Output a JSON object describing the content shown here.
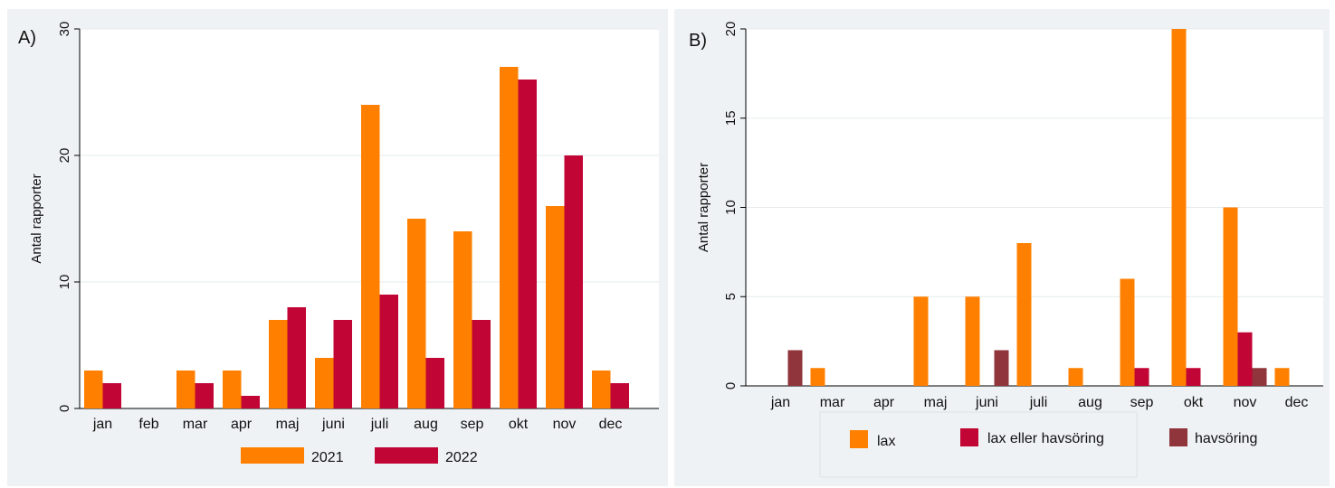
{
  "colors": {
    "orange": "#ff8000",
    "red": "#c10534",
    "maroon": "#90353b",
    "gridline": "#e6ebee",
    "plot_bg": "#ffffff",
    "panel_bg": "#eef2f4",
    "axis": "#000000"
  },
  "chart_data": [
    {
      "type": "bar",
      "panel_label": "A)",
      "title": "",
      "xlabel": "",
      "ylabel": "Antal rapporter",
      "ylim": [
        0,
        30
      ],
      "yticks": [
        0,
        10,
        20,
        30
      ],
      "grid": true,
      "legend_position": "bottom",
      "categories": [
        "jan",
        "feb",
        "mar",
        "apr",
        "maj",
        "juni",
        "juli",
        "aug",
        "sep",
        "okt",
        "nov",
        "dec"
      ],
      "series": [
        {
          "name": "2021",
          "color": "#ff8000",
          "values": [
            3,
            0,
            3,
            3,
            7,
            4,
            24,
            15,
            14,
            27,
            16,
            3
          ]
        },
        {
          "name": "2022",
          "color": "#c10534",
          "values": [
            2,
            0,
            2,
            1,
            8,
            7,
            9,
            4,
            7,
            26,
            20,
            2
          ]
        }
      ]
    },
    {
      "type": "bar",
      "panel_label": "B)",
      "title": "",
      "xlabel": "",
      "ylabel": "Antal rapporter",
      "ylim": [
        0,
        20
      ],
      "yticks": [
        0,
        5,
        10,
        15,
        20
      ],
      "grid": true,
      "legend_position": "bottom",
      "categories": [
        "jan",
        "mar",
        "apr",
        "maj",
        "juni",
        "juli",
        "aug",
        "sep",
        "okt",
        "nov",
        "dec"
      ],
      "series": [
        {
          "name": "lax",
          "color": "#ff8000",
          "values": [
            0,
            1,
            0,
            5,
            5,
            8,
            1,
            6,
            20,
            10,
            1
          ]
        },
        {
          "name": "lax eller havsöring",
          "color": "#c10534",
          "values": [
            0,
            0,
            0,
            0,
            0,
            0,
            0,
            1,
            1,
            3,
            0
          ]
        },
        {
          "name": "havsöring",
          "color": "#90353b",
          "values": [
            2,
            0,
            0,
            0,
            2,
            0,
            0,
            0,
            0,
            1,
            0
          ]
        }
      ]
    }
  ]
}
